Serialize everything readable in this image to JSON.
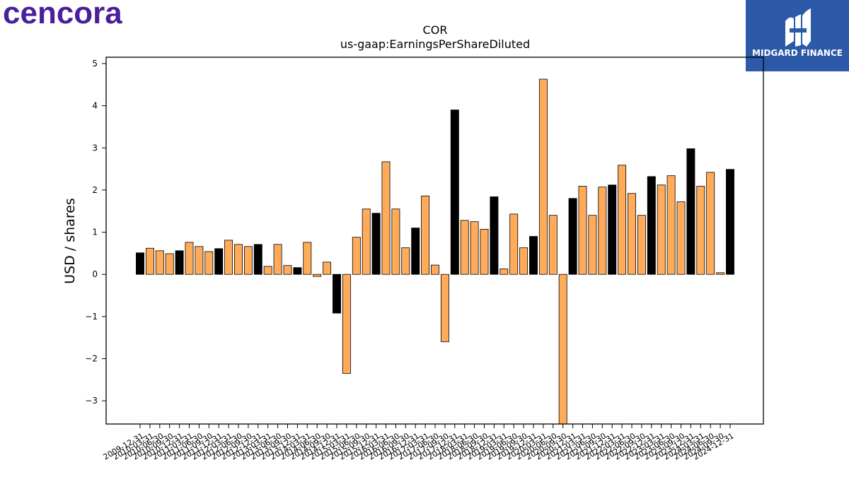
{
  "brand": {
    "logo_text": "cencora",
    "logo_color": "#4b1e9a"
  },
  "corner_logo": {
    "text": "MIDGARD FINANCE",
    "bg_color": "#2c5aa8"
  },
  "chart_data": {
    "type": "bar",
    "title": "COR",
    "subtitle": "us-gaap:EarningsPerShareDiluted",
    "xlabel": "",
    "ylabel": "USD / shares",
    "ylim": [
      -3.55,
      5.15
    ],
    "yticks": [
      -3,
      -2,
      -1,
      0,
      1,
      2,
      3,
      4,
      5
    ],
    "ytick_labels": [
      "−3",
      "−2",
      "−1",
      "0",
      "1",
      "2",
      "3",
      "4",
      "5"
    ],
    "grid": false,
    "colors": {
      "annual": "#000000",
      "quarterly": "#ffab5a",
      "edge": "#000000"
    },
    "bars": [
      {
        "date": "2009-12-31",
        "value": 0.51,
        "kind": "annual"
      },
      {
        "date": "2010-03-31",
        "value": 0.62,
        "kind": "quarterly"
      },
      {
        "date": "2010-06-30",
        "value": 0.56,
        "kind": "quarterly"
      },
      {
        "date": "2010-09-30",
        "value": 0.49,
        "kind": "quarterly"
      },
      {
        "date": "2010-12-31",
        "value": 0.56,
        "kind": "annual"
      },
      {
        "date": "2011-03-31",
        "value": 0.76,
        "kind": "quarterly"
      },
      {
        "date": "2011-06-30",
        "value": 0.66,
        "kind": "quarterly"
      },
      {
        "date": "2011-09-30",
        "value": 0.54,
        "kind": "quarterly"
      },
      {
        "date": "2011-12-31",
        "value": 0.61,
        "kind": "annual"
      },
      {
        "date": "2012-03-31",
        "value": 0.81,
        "kind": "quarterly"
      },
      {
        "date": "2012-06-30",
        "value": 0.71,
        "kind": "quarterly"
      },
      {
        "date": "2012-09-30",
        "value": 0.66,
        "kind": "quarterly"
      },
      {
        "date": "2012-12-31",
        "value": 0.71,
        "kind": "annual"
      },
      {
        "date": "2013-03-31",
        "value": 0.19,
        "kind": "quarterly"
      },
      {
        "date": "2013-06-30",
        "value": 0.71,
        "kind": "quarterly"
      },
      {
        "date": "2013-09-30",
        "value": 0.21,
        "kind": "quarterly"
      },
      {
        "date": "2013-12-31",
        "value": 0.16,
        "kind": "annual"
      },
      {
        "date": "2014-03-31",
        "value": 0.76,
        "kind": "quarterly"
      },
      {
        "date": "2014-06-30",
        "value": -0.05,
        "kind": "quarterly"
      },
      {
        "date": "2014-09-30",
        "value": 0.29,
        "kind": "quarterly"
      },
      {
        "date": "2014-12-31",
        "value": -0.92,
        "kind": "annual"
      },
      {
        "date": "2015-03-31",
        "value": -2.35,
        "kind": "quarterly"
      },
      {
        "date": "2015-06-30",
        "value": 0.88,
        "kind": "quarterly"
      },
      {
        "date": "2015-09-30",
        "value": 1.55,
        "kind": "quarterly"
      },
      {
        "date": "2015-12-31",
        "value": 1.45,
        "kind": "annual"
      },
      {
        "date": "2016-03-31",
        "value": 2.67,
        "kind": "quarterly"
      },
      {
        "date": "2016-06-30",
        "value": 1.55,
        "kind": "quarterly"
      },
      {
        "date": "2016-09-30",
        "value": 0.63,
        "kind": "quarterly"
      },
      {
        "date": "2016-12-31",
        "value": 1.1,
        "kind": "annual"
      },
      {
        "date": "2017-03-31",
        "value": 1.86,
        "kind": "quarterly"
      },
      {
        "date": "2017-06-30",
        "value": 0.22,
        "kind": "quarterly"
      },
      {
        "date": "2017-09-30",
        "value": -1.6,
        "kind": "quarterly"
      },
      {
        "date": "2017-12-31",
        "value": 3.9,
        "kind": "annual"
      },
      {
        "date": "2018-03-31",
        "value": 1.28,
        "kind": "quarterly"
      },
      {
        "date": "2018-06-30",
        "value": 1.25,
        "kind": "quarterly"
      },
      {
        "date": "2018-09-30",
        "value": 1.07,
        "kind": "quarterly"
      },
      {
        "date": "2018-12-31",
        "value": 1.84,
        "kind": "annual"
      },
      {
        "date": "2019-03-31",
        "value": 0.13,
        "kind": "quarterly"
      },
      {
        "date": "2019-06-30",
        "value": 1.43,
        "kind": "quarterly"
      },
      {
        "date": "2019-09-30",
        "value": 0.63,
        "kind": "quarterly"
      },
      {
        "date": "2019-12-31",
        "value": 0.9,
        "kind": "annual"
      },
      {
        "date": "2020-03-31",
        "value": 4.63,
        "kind": "quarterly"
      },
      {
        "date": "2020-06-30",
        "value": 1.4,
        "kind": "quarterly"
      },
      {
        "date": "2020-09-30",
        "value": -3.6,
        "kind": "quarterly"
      },
      {
        "date": "2020-12-31",
        "value": 1.8,
        "kind": "annual"
      },
      {
        "date": "2021-03-31",
        "value": 2.09,
        "kind": "quarterly"
      },
      {
        "date": "2021-06-30",
        "value": 1.4,
        "kind": "quarterly"
      },
      {
        "date": "2021-09-30",
        "value": 2.07,
        "kind": "quarterly"
      },
      {
        "date": "2021-12-31",
        "value": 2.12,
        "kind": "annual"
      },
      {
        "date": "2022-03-31",
        "value": 2.59,
        "kind": "quarterly"
      },
      {
        "date": "2022-06-30",
        "value": 1.92,
        "kind": "quarterly"
      },
      {
        "date": "2022-09-30",
        "value": 1.4,
        "kind": "quarterly"
      },
      {
        "date": "2022-12-31",
        "value": 2.32,
        "kind": "annual"
      },
      {
        "date": "2023-03-31",
        "value": 2.12,
        "kind": "quarterly"
      },
      {
        "date": "2023-06-30",
        "value": 2.34,
        "kind": "quarterly"
      },
      {
        "date": "2023-09-30",
        "value": 1.72,
        "kind": "quarterly"
      },
      {
        "date": "2023-12-31",
        "value": 2.98,
        "kind": "annual"
      },
      {
        "date": "2024-03-31",
        "value": 2.09,
        "kind": "quarterly"
      },
      {
        "date": "2024-06-30",
        "value": 2.42,
        "kind": "quarterly"
      },
      {
        "date": "2024-09-30",
        "value": 0.04,
        "kind": "quarterly"
      },
      {
        "date": "2024-12-31",
        "value": 2.49,
        "kind": "annual"
      }
    ]
  }
}
